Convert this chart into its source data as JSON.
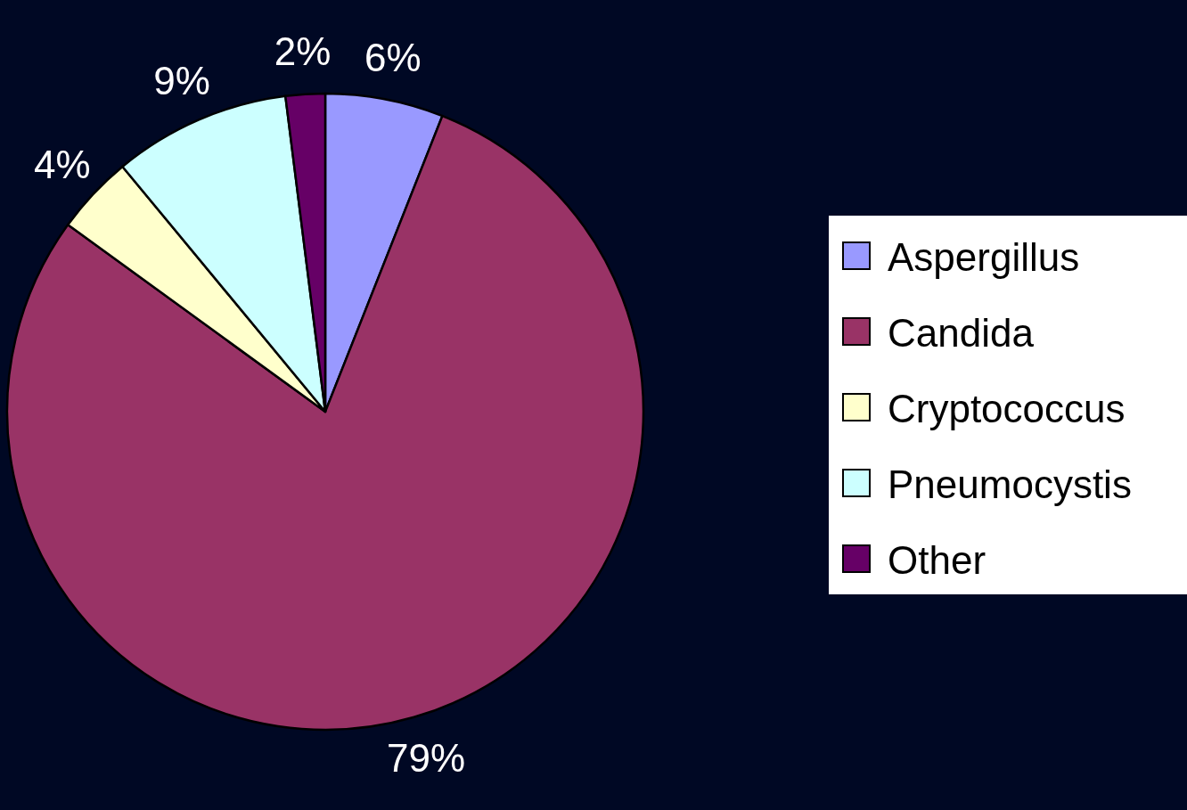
{
  "chart_data": {
    "type": "pie",
    "categories": [
      "Aspergillus",
      "Candida",
      "Cryptococcus",
      "Pneumocystis",
      "Other"
    ],
    "values": [
      6,
      79,
      4,
      9,
      2
    ],
    "colors": [
      "#9999ff",
      "#993366",
      "#ffffcc",
      "#ccffff",
      "#660066"
    ],
    "value_labels": [
      "6%",
      "79%",
      "4%",
      "9%",
      "2%"
    ],
    "legend": "right"
  }
}
